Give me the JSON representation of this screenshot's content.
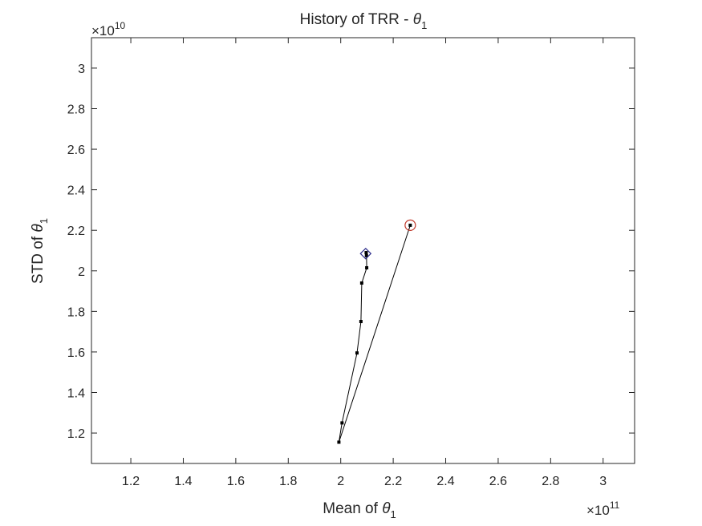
{
  "chart_data": {
    "type": "line",
    "title": {
      "text": "History of TRR - ",
      "symbol": "θ",
      "subscript": "1"
    },
    "xlabel": {
      "text": "Mean of ",
      "symbol": "θ",
      "subscript": "1"
    },
    "ylabel": {
      "text": "STD of ",
      "symbol": "θ",
      "subscript": "1"
    },
    "x_exponent": {
      "base": "×10",
      "power": "11"
    },
    "y_exponent": {
      "base": "×10",
      "power": "10"
    },
    "xlim": [
      1.05,
      3.12
    ],
    "ylim": [
      1.05,
      3.15
    ],
    "xticks": [
      "1.2",
      "1.4",
      "1.6",
      "1.8",
      "2",
      "2.2",
      "2.4",
      "2.6",
      "2.8",
      "3"
    ],
    "yticks": [
      "1.2",
      "1.4",
      "1.6",
      "1.8",
      "2",
      "2.2",
      "2.4",
      "2.6",
      "2.8",
      "3"
    ],
    "grid": false,
    "series": [
      {
        "line_color": "#000000",
        "marker": "square",
        "x": [
          2.265,
          1.993,
          2.005,
          2.062,
          2.077,
          2.08,
          2.099,
          2.098,
          2.097
        ],
        "y": [
          2.225,
          1.155,
          1.25,
          1.595,
          1.75,
          1.94,
          2.015,
          2.075,
          2.09
        ]
      }
    ],
    "start_marker": {
      "shape": "circle",
      "color": "#c0392b",
      "x": 2.265,
      "y": 2.225
    },
    "end_marker": {
      "shape": "diamond",
      "color": "#2a2a8a",
      "x": 2.095,
      "y": 2.085
    }
  }
}
